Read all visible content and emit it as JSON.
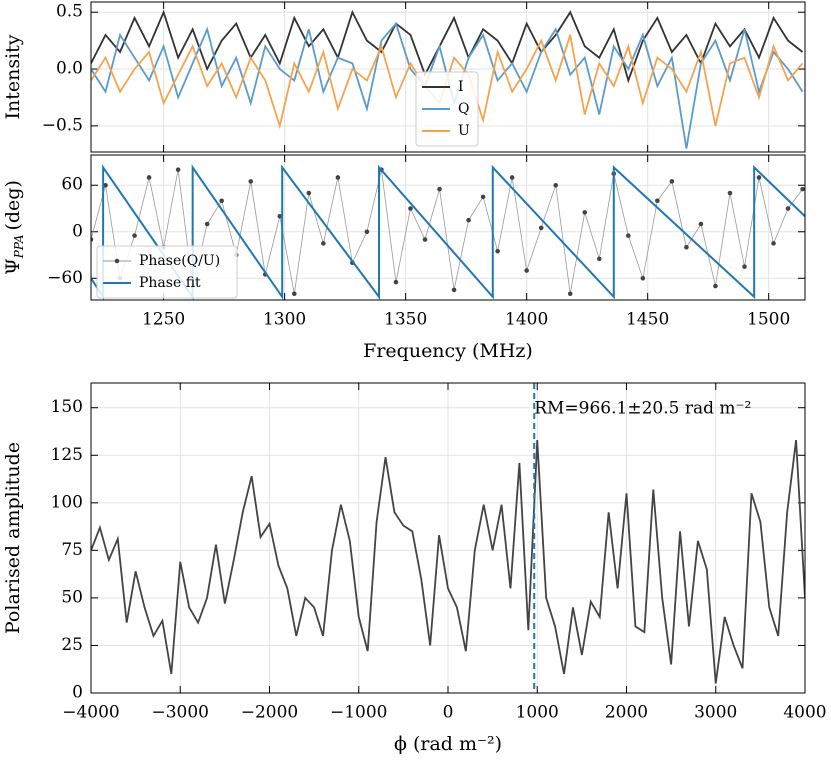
{
  "chart_data": [
    {
      "type": "line",
      "ylabel": "Intensity",
      "legend": "lower center",
      "xlim": [
        1220,
        1515
      ],
      "ylim": [
        -0.73,
        0.59
      ],
      "yticks": [
        {
          "value": -0.5,
          "label": "−0.5"
        },
        {
          "value": 0,
          "label": "0.0"
        },
        {
          "value": 0.5,
          "label": "0.5"
        }
      ],
      "x": [
        1220,
        1226,
        1232,
        1238,
        1244,
        1250,
        1256,
        1262,
        1268,
        1274,
        1280,
        1286,
        1292,
        1298,
        1304,
        1310,
        1316,
        1322,
        1328,
        1334,
        1340,
        1346,
        1352,
        1358,
        1364,
        1370,
        1376,
        1382,
        1388,
        1394,
        1400,
        1406,
        1412,
        1418,
        1424,
        1430,
        1436,
        1442,
        1448,
        1454,
        1460,
        1466,
        1472,
        1478,
        1484,
        1490,
        1496,
        1502,
        1508,
        1514
      ],
      "series": [
        {
          "name": "I",
          "color": "#333333",
          "values": [
            0.05,
            0.3,
            0.15,
            0.45,
            0.2,
            0.5,
            0.1,
            0.35,
            0.0,
            0.25,
            0.4,
            0.1,
            0.3,
            0.05,
            0.45,
            0.2,
            0.35,
            0.1,
            0.5,
            0.25,
            0.15,
            0.4,
            0.3,
            -0.05,
            0.2,
            0.45,
            0.1,
            0.35,
            0.25,
            0.05,
            0.4,
            0.15,
            0.3,
            0.5,
            0.2,
            0.1,
            0.35,
            -0.1,
            0.25,
            0.45,
            0.15,
            0.3,
            0.05,
            0.4,
            0.2,
            0.35,
            0.1,
            0.45,
            0.25,
            0.15
          ]
        },
        {
          "name": "Q",
          "color": "#5b9bcc",
          "values": [
            0.0,
            -0.2,
            0.3,
            0.1,
            -0.1,
            0.2,
            -0.25,
            0.05,
            0.35,
            -0.15,
            0.1,
            -0.3,
            0.2,
            0.0,
            -0.1,
            0.35,
            -0.2,
            0.1,
            0.05,
            -0.35,
            0.25,
            0.4,
            0.0,
            -0.15,
            0.2,
            -0.3,
            0.1,
            0.3,
            -0.1,
            0.05,
            -0.2,
            0.15,
            0.35,
            -0.05,
            0.1,
            -0.4,
            0.2,
            0.0,
            0.3,
            -0.15,
            0.1,
            -0.7,
            0.05,
            0.25,
            -0.1,
            0.35,
            -0.2,
            0.15,
            0.0,
            -0.2
          ]
        },
        {
          "name": "U",
          "color": "#f5a34f",
          "values": [
            -0.1,
            0.1,
            -0.2,
            0.0,
            0.15,
            -0.3,
            -0.05,
            0.2,
            -0.15,
            0.05,
            -0.25,
            0.1,
            -0.1,
            -0.5,
            0.05,
            -0.2,
            0.15,
            -0.35,
            0.0,
            -0.1,
            0.2,
            -0.25,
            0.05,
            -0.15,
            -0.3,
            0.1,
            -0.05,
            -0.45,
            0.15,
            -0.2,
            0.0,
            0.25,
            -0.1,
            0.3,
            -0.4,
            0.05,
            -0.15,
            0.2,
            -0.3,
            0.1,
            0.0,
            -0.2,
            0.15,
            -0.5,
            0.05,
            0.1,
            -0.25,
            0.2,
            -0.1,
            0.05
          ]
        }
      ]
    },
    {
      "type": "line",
      "ylabel_symbol": "Ψ",
      "ylabel_sub": "PPA",
      "ylabel_unit": "(deg)",
      "xlabel": "Frequency (MHz)",
      "legend": "lower left",
      "xlim": [
        1220,
        1515
      ],
      "ylim": [
        -88,
        99
      ],
      "xticks": [
        1250,
        1300,
        1350,
        1400,
        1450,
        1500
      ],
      "yticks": [
        {
          "value": -60,
          "label": "−60"
        },
        0,
        60
      ],
      "series": [
        {
          "name": "Phase(Q/U)",
          "color": "#999999",
          "marker": "#444444",
          "x": [
            1220,
            1226,
            1232,
            1238,
            1244,
            1250,
            1256,
            1262,
            1268,
            1274,
            1280,
            1286,
            1292,
            1298,
            1304,
            1310,
            1316,
            1322,
            1328,
            1334,
            1340,
            1346,
            1352,
            1358,
            1364,
            1370,
            1376,
            1382,
            1388,
            1394,
            1400,
            1406,
            1412,
            1418,
            1424,
            1430,
            1436,
            1442,
            1448,
            1454,
            1460,
            1466,
            1472,
            1478,
            1484,
            1490,
            1496,
            1502,
            1508,
            1514
          ],
          "values": [
            -10,
            60,
            -60,
            -5,
            70,
            -20,
            80,
            -70,
            10,
            40,
            -30,
            65,
            -55,
            20,
            -80,
            50,
            -15,
            70,
            -40,
            0,
            80,
            -65,
            30,
            -10,
            55,
            -75,
            15,
            45,
            -25,
            70,
            -50,
            5,
            60,
            -80,
            25,
            -35,
            75,
            -5,
            -60,
            40,
            65,
            -20,
            10,
            -70,
            50,
            -45,
            70,
            -15,
            30,
            55
          ]
        },
        {
          "name": "Phase fit",
          "color": "#1f77b4",
          "x": [
            1220,
            1225,
            1225,
            1262,
            1262,
            1299,
            1299,
            1339,
            1339,
            1386,
            1386,
            1436,
            1436,
            1494,
            1494,
            1515
          ],
          "values": [
            -60,
            -84,
            83,
            -84,
            83,
            -84,
            83,
            -84,
            83,
            -84,
            83,
            -84,
            83,
            -84,
            83,
            20
          ]
        }
      ]
    },
    {
      "type": "line",
      "ylabel": "Polarised amplitude",
      "xlabel": "ϕ (rad m⁻²)",
      "xlim": [
        -4000,
        4000
      ],
      "ylim": [
        0,
        163
      ],
      "xticks": [
        {
          "value": -4000,
          "label": "−4000"
        },
        {
          "value": -3000,
          "label": "−3000"
        },
        {
          "value": -2000,
          "label": "−2000"
        },
        {
          "value": -1000,
          "label": "−1000"
        },
        0,
        1000,
        2000,
        3000,
        4000
      ],
      "yticks": [
        0,
        25,
        50,
        75,
        100,
        125,
        150
      ],
      "annotation": "RM=966.1±20.5 rad m⁻²",
      "vline": 966.1,
      "vline_color": "#1f77b4",
      "x": [
        -4000,
        -3900,
        -3800,
        -3700,
        -3600,
        -3500,
        -3400,
        -3300,
        -3200,
        -3100,
        -3000,
        -2900,
        -2800,
        -2700,
        -2600,
        -2500,
        -2400,
        -2300,
        -2200,
        -2100,
        -2000,
        -1900,
        -1800,
        -1700,
        -1600,
        -1500,
        -1400,
        -1300,
        -1200,
        -1100,
        -1000,
        -900,
        -800,
        -700,
        -600,
        -500,
        -400,
        -300,
        -200,
        -100,
        0,
        100,
        200,
        300,
        400,
        500,
        600,
        700,
        800,
        900,
        1000,
        1100,
        1200,
        1300,
        1400,
        1500,
        1600,
        1700,
        1800,
        1900,
        2000,
        2100,
        2200,
        2300,
        2400,
        2500,
        2600,
        2700,
        2800,
        2900,
        3000,
        3100,
        3200,
        3300,
        3400,
        3500,
        3600,
        3700,
        3800,
        3900,
        4000
      ],
      "series": [
        {
          "name": "amplitude",
          "color": "#444444",
          "values": [
            75,
            87,
            70,
            81,
            37,
            64,
            45,
            30,
            38,
            10,
            69,
            45,
            37,
            50,
            78,
            47,
            70,
            95,
            114,
            82,
            89,
            67,
            55,
            30,
            50,
            45,
            30,
            75,
            99,
            80,
            40,
            22,
            90,
            124,
            95,
            88,
            85,
            60,
            25,
            83,
            55,
            45,
            22,
            75,
            99,
            75,
            99,
            55,
            121,
            33,
            133,
            50,
            35,
            10,
            45,
            20,
            48,
            40,
            95,
            55,
            105,
            35,
            32,
            107,
            50,
            15,
            85,
            35,
            80,
            65,
            5,
            40,
            25,
            13,
            105,
            90,
            45,
            30,
            95,
            133,
            50
          ]
        }
      ]
    }
  ]
}
